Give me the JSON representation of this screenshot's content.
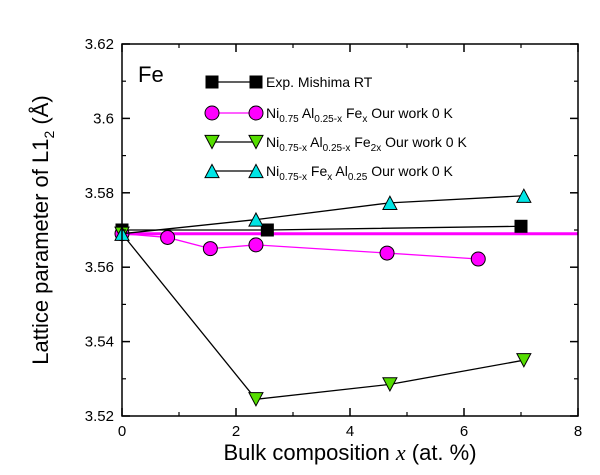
{
  "chart_data": {
    "type": "line",
    "panel_label": "Fe",
    "ylabel": {
      "main": "Lattice parameter of L1",
      "sub": "2",
      "unit": " (Å)"
    },
    "xlabel": {
      "main": "Bulk composition ",
      "var": "x",
      "unit": " (at. %)"
    },
    "xlim": [
      0,
      8
    ],
    "ylim": [
      3.52,
      3.62
    ],
    "xticks": [
      0,
      2,
      4,
      6,
      8
    ],
    "yticks": [
      3.52,
      3.54,
      3.56,
      3.58,
      3.6,
      3.62
    ],
    "yticklabels": [
      "3.52",
      "3.54",
      "3.56",
      "3.58",
      "3.6",
      "3.62"
    ],
    "reference_line": {
      "y": 3.569,
      "color": "#ff00ff"
    },
    "series": [
      {
        "id": "exp",
        "legend_parts": [
          [
            "Exp. Mishima  RT",
            null
          ]
        ],
        "marker": "square",
        "color": "#000000",
        "line_color": "#000000",
        "x": [
          0,
          2.55,
          7.0
        ],
        "y": [
          3.57,
          3.57,
          3.571
        ]
      },
      {
        "id": "al_sub",
        "legend_parts": [
          [
            "Ni",
            null
          ],
          [
            "0.75",
            "sub"
          ],
          [
            " Al",
            null
          ],
          [
            "0.25-x",
            "sub"
          ],
          [
            " Fe",
            null
          ],
          [
            "x",
            "sub"
          ],
          [
            "            Our work        0 K",
            null
          ]
        ],
        "marker": "circle",
        "color": "#ff00ff",
        "line_color": "#ff00ff",
        "x": [
          0,
          0.8,
          1.55,
          2.35,
          4.65,
          6.25
        ],
        "y": [
          3.569,
          3.568,
          3.565,
          3.566,
          3.5638,
          3.5622
        ]
      },
      {
        "id": "ni_al_sub",
        "legend_parts": [
          [
            "Ni",
            null
          ],
          [
            "0.75-x",
            "sub"
          ],
          [
            " Al",
            null
          ],
          [
            "0.25-x",
            "sub"
          ],
          [
            " Fe",
            null
          ],
          [
            "2x",
            "sub"
          ],
          [
            "    Our  work       0 K",
            null
          ]
        ],
        "marker": "triangle-down",
        "color": "#55dd00",
        "line_color": "#000000",
        "x": [
          0,
          2.35,
          4.7,
          7.05
        ],
        "y": [
          3.569,
          3.5245,
          3.5285,
          3.535
        ]
      },
      {
        "id": "ni_sub",
        "legend_parts": [
          [
            "Ni",
            null
          ],
          [
            "0.75-x",
            "sub"
          ],
          [
            " Fe",
            null
          ],
          [
            "x",
            "sub"
          ],
          [
            " Al",
            null
          ],
          [
            "0.25",
            "sub"
          ],
          [
            "            Our work        0 K",
            null
          ]
        ],
        "marker": "triangle-up",
        "color": "#00e5e5",
        "line_color": "#000000",
        "x": [
          0,
          2.35,
          4.7,
          7.05
        ],
        "y": [
          3.569,
          3.5728,
          3.5773,
          3.5792
        ]
      }
    ]
  }
}
